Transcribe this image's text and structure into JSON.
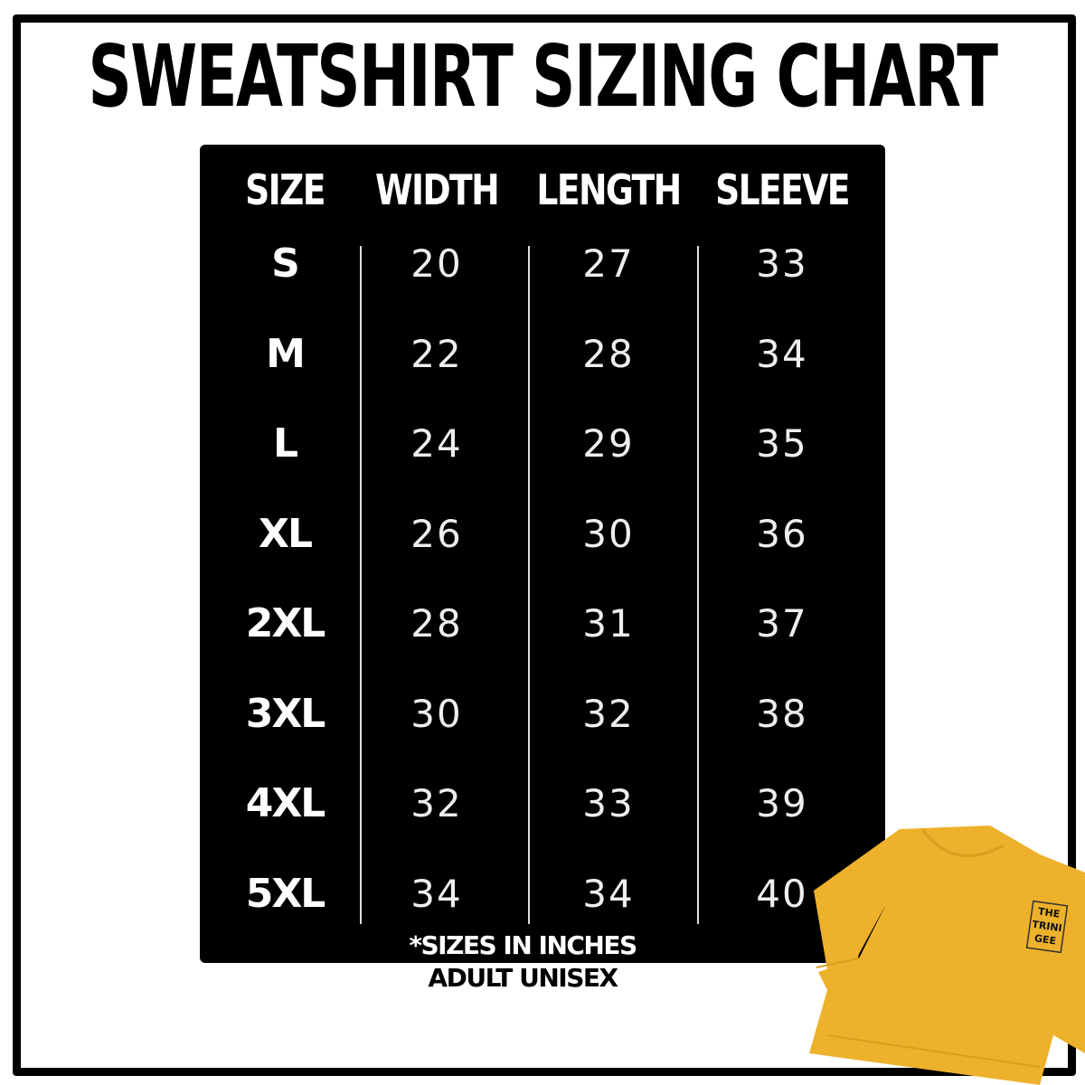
{
  "title": "SWEATSHIRT SIZING CHART",
  "chart_data": {
    "type": "table",
    "columns": [
      "SIZE",
      "WIDTH",
      "LENGTH",
      "SLEEVE"
    ],
    "rows": [
      [
        "S",
        "20",
        "27",
        "33"
      ],
      [
        "M",
        "22",
        "28",
        "34"
      ],
      [
        "L",
        "24",
        "29",
        "35"
      ],
      [
        "XL",
        "26",
        "30",
        "36"
      ],
      [
        "2XL",
        "28",
        "31",
        "37"
      ],
      [
        "3XL",
        "30",
        "32",
        "38"
      ],
      [
        "4XL",
        "32",
        "33",
        "39"
      ],
      [
        "5XL",
        "34",
        "34",
        "40"
      ]
    ]
  },
  "notes": [
    "*SIZES IN INCHES",
    "ADULT UNISEX"
  ],
  "logo_text": "THE TRINI GEE",
  "colors": {
    "board": "#000000",
    "sweatshirt": "#EDB12B"
  }
}
